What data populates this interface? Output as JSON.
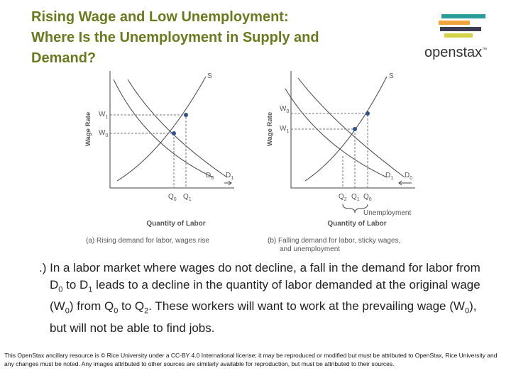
{
  "title": [
    "Rising Wage and Low Unemployment:",
    "Where Is the Unemployment in Supply and",
    "Demand?"
  ],
  "logo": {
    "text": "openstax",
    "mark": "™"
  },
  "graphs": [
    {
      "y_axis": "Wage Rate",
      "x_axis": "Quantity of Labor",
      "caption": [
        "(a) Rising demand for labor, wages rise"
      ],
      "labels": [
        {
          "text": "S"
        },
        {
          "text": "W",
          "sub": "1"
        },
        {
          "text": "W",
          "sub": "0"
        },
        {
          "text": "D",
          "sub": "0"
        },
        {
          "text": "D",
          "sub": "1"
        },
        {
          "text": "Q",
          "sub": "0"
        },
        {
          "text": "Q",
          "sub": "1"
        }
      ]
    },
    {
      "y_axis": "Wage Rate",
      "x_axis": "Quantity of Labor",
      "caption": [
        "(b) Falling demand for labor, sticky wages,",
        "and unemployment"
      ],
      "labels": [
        {
          "text": "S"
        },
        {
          "text": "W",
          "sub": "0"
        },
        {
          "text": "W",
          "sub": "1"
        },
        {
          "text": "D",
          "sub": "1"
        },
        {
          "text": "D",
          "sub": "0"
        },
        {
          "text": "Q",
          "sub": "2"
        },
        {
          "text": "Q",
          "sub": "1"
        },
        {
          "text": "Q",
          "sub": "0"
        },
        {
          "text": "Unemployment"
        }
      ]
    }
  ],
  "body": [
    ".) In a labor market where wages do not decline, a fall in the demand for labor from D",
    "0",
    " to D",
    "1",
    " leads to a decline in the quantity of labor demanded at the original wage (W",
    "0",
    ") from Q",
    "0",
    " to Q",
    "2",
    ". These workers will want to work at the prevailing wage (W",
    "0",
    "), but will not be able to find jobs."
  ],
  "footer": "This OpenStax ancillary resource is © Rice University under a CC-BY 4.0 International license; it may be reproduced or modified but must be attributed to OpenStax, Rice University and any changes must be noted.  Any images attributed to other sources are similarly available for reproduction, but must be attributed to their sources."
}
